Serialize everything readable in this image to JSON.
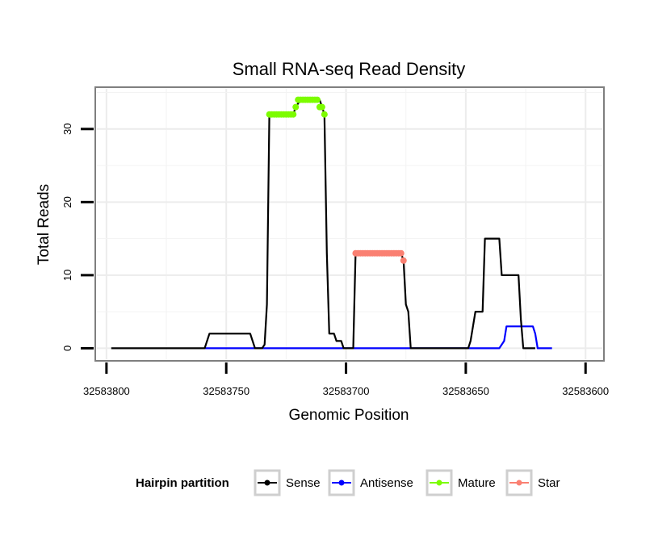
{
  "chart_data": {
    "type": "line",
    "title": "Small RNA-seq Read Density",
    "xlabel": "Genomic Position",
    "ylabel": "Total Reads",
    "xlim": [
      32583804,
      32583593
    ],
    "ylim": [
      -1.5,
      35.5
    ],
    "x_reversed": true,
    "grid": true,
    "x_ticks": [
      32583800,
      32583750,
      32583700,
      32583650,
      32583600
    ],
    "x_tick_labels": [
      "32583800",
      "32583750",
      "32583700",
      "32583650",
      "32583600"
    ],
    "y_ticks": [
      0,
      10,
      20,
      30
    ],
    "y_tick_labels": [
      "0",
      "10",
      "20",
      "30"
    ],
    "legend": {
      "title": "Hairpin partition",
      "position": "bottom",
      "entries": [
        {
          "name": "Sense",
          "color": "#000000"
        },
        {
          "name": "Antisense",
          "color": "#0000ff"
        },
        {
          "name": "Mature",
          "color": "#7cfc00"
        },
        {
          "name": "Star",
          "color": "#fa8072"
        }
      ]
    },
    "series": [
      {
        "name": "Sense",
        "color": "#000000",
        "style": "line",
        "points": [
          [
            32583798,
            0
          ],
          [
            32583759,
            0
          ],
          [
            32583757,
            2
          ],
          [
            32583740,
            2
          ],
          [
            32583738,
            0
          ],
          [
            32583735,
            0
          ],
          [
            32583734,
            0.5
          ],
          [
            32583733,
            6
          ],
          [
            32583732,
            32
          ],
          [
            32583722,
            32
          ],
          [
            32583721,
            33
          ],
          [
            32583719,
            34
          ],
          [
            32583711,
            34
          ],
          [
            32583710,
            33
          ],
          [
            32583709,
            32
          ],
          [
            32583708,
            13
          ],
          [
            32583707,
            2
          ],
          [
            32583705,
            2
          ],
          [
            32583704,
            1
          ],
          [
            32583702,
            1
          ],
          [
            32583701,
            0
          ],
          [
            32583697,
            0
          ],
          [
            32583696,
            13
          ],
          [
            32583677,
            13
          ],
          [
            32583676,
            12
          ],
          [
            32583675,
            6
          ],
          [
            32583674,
            5
          ],
          [
            32583673,
            0
          ],
          [
            32583649,
            0
          ],
          [
            32583648,
            1
          ],
          [
            32583647,
            3
          ],
          [
            32583646,
            5
          ],
          [
            32583643,
            5
          ],
          [
            32583642,
            15
          ],
          [
            32583636,
            15
          ],
          [
            32583635,
            10
          ],
          [
            32583628,
            10
          ],
          [
            32583627,
            4
          ],
          [
            32583626,
            0
          ],
          [
            32583621,
            0
          ]
        ]
      },
      {
        "name": "Antisense",
        "color": "#0000ff",
        "style": "line",
        "points": [
          [
            32583759,
            0
          ],
          [
            32583636,
            0
          ],
          [
            32583635,
            0.5
          ],
          [
            32583634,
            1
          ],
          [
            32583633,
            3
          ],
          [
            32583622,
            3
          ],
          [
            32583621,
            2
          ],
          [
            32583620,
            0
          ],
          [
            32583614,
            0
          ]
        ]
      },
      {
        "name": "Mature",
        "color": "#7cfc00",
        "style": "points",
        "points": [
          [
            32583732,
            32
          ],
          [
            32583731,
            32
          ],
          [
            32583730,
            32
          ],
          [
            32583729,
            32
          ],
          [
            32583728,
            32
          ],
          [
            32583727,
            32
          ],
          [
            32583726,
            32
          ],
          [
            32583725,
            32
          ],
          [
            32583724,
            32
          ],
          [
            32583723,
            32
          ],
          [
            32583722,
            32
          ],
          [
            32583721,
            33
          ],
          [
            32583720,
            34
          ],
          [
            32583719,
            34
          ],
          [
            32583718,
            34
          ],
          [
            32583717,
            34
          ],
          [
            32583716,
            34
          ],
          [
            32583715,
            34
          ],
          [
            32583714,
            34
          ],
          [
            32583713,
            34
          ],
          [
            32583712,
            34
          ],
          [
            32583711,
            33
          ],
          [
            32583710,
            33
          ],
          [
            32583709,
            32
          ]
        ]
      },
      {
        "name": "Star",
        "color": "#fa8072",
        "style": "points",
        "points": [
          [
            32583696,
            13
          ],
          [
            32583695,
            13
          ],
          [
            32583694,
            13
          ],
          [
            32583693,
            13
          ],
          [
            32583692,
            13
          ],
          [
            32583691,
            13
          ],
          [
            32583690,
            13
          ],
          [
            32583689,
            13
          ],
          [
            32583688,
            13
          ],
          [
            32583687,
            13
          ],
          [
            32583686,
            13
          ],
          [
            32583685,
            13
          ],
          [
            32583684,
            13
          ],
          [
            32583683,
            13
          ],
          [
            32583682,
            13
          ],
          [
            32583681,
            13
          ],
          [
            32583680,
            13
          ],
          [
            32583679,
            13
          ],
          [
            32583678,
            13
          ],
          [
            32583677,
            13
          ],
          [
            32583676,
            12
          ]
        ]
      }
    ]
  }
}
